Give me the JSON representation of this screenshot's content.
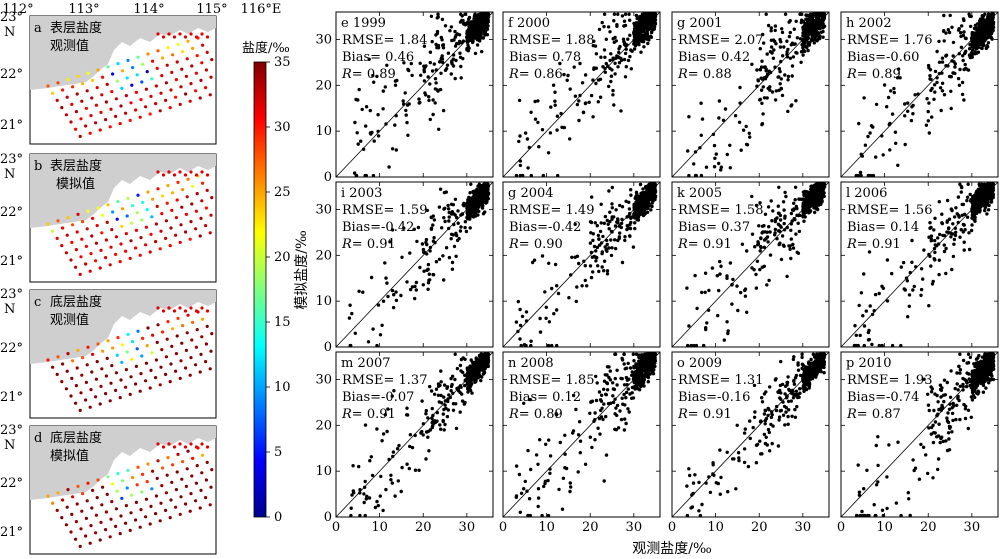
{
  "maps": {
    "top_lon_labels": [
      "112°",
      "113°",
      "114°",
      "115°",
      "116°E"
    ],
    "lat_labels": [
      {
        "deg": "23°",
        "hemi": "N"
      },
      {
        "deg": "22°"
      },
      {
        "deg": "21°"
      }
    ],
    "panels": [
      {
        "letter": "a",
        "line1": "表层盐度",
        "line2": "观测值"
      },
      {
        "letter": "b",
        "line1": "表层盐度",
        "line2": "模拟值"
      },
      {
        "letter": "c",
        "line1": "底层盐度",
        "line2": "观测值"
      },
      {
        "letter": "d",
        "line1": "底层盐度",
        "line2": "模拟值"
      }
    ],
    "colors": {
      "land": "#cfcfcf",
      "sea": "#ffffff"
    }
  },
  "colorbar": {
    "label": "盐度/‰",
    "ticks": [
      "0",
      "5",
      "10",
      "15",
      "20",
      "25",
      "30",
      "35"
    ],
    "range": [
      0,
      35
    ],
    "colormap": "jet"
  },
  "chart_data": {
    "type": "scatter",
    "xlabel": "观测盐度/‰",
    "ylabel": "模拟盐度/‰",
    "xlim": [
      0,
      36
    ],
    "ylim": [
      0,
      36
    ],
    "x_ticks": [
      "0",
      "10",
      "20",
      "30"
    ],
    "y_ticks": [
      "0",
      "10",
      "20",
      "30"
    ],
    "reference_line": "1:1",
    "marker_color": "#000000",
    "panels": [
      {
        "letter": "e",
        "year": "1999",
        "rmse": "1.84",
        "bias": "0.46",
        "r": "0.89"
      },
      {
        "letter": "f",
        "year": "2000",
        "rmse": "1.88",
        "bias": "0.78",
        "r": "0.86"
      },
      {
        "letter": "g",
        "year": "2001",
        "rmse": "2.07",
        "bias": "0.42",
        "r": "0.88"
      },
      {
        "letter": "h",
        "year": "2002",
        "rmse": "1.76",
        "bias": "-0.60",
        "r": "0.89"
      },
      {
        "letter": "i",
        "year": "2003",
        "rmse": "1.59",
        "bias": "-0.42",
        "r": "0.91"
      },
      {
        "letter": "g",
        "year": "2004",
        "rmse": "1.49",
        "bias": "-0.42",
        "r": "0.90"
      },
      {
        "letter": "k",
        "year": "2005",
        "rmse": "1.58",
        "bias": "0.37",
        "r": "0.91"
      },
      {
        "letter": "l",
        "year": "2006",
        "rmse": "1.56",
        "bias": "0.14",
        "r": "0.91"
      },
      {
        "letter": "m",
        "year": "2007",
        "rmse": "1.37",
        "bias": "-0.07",
        "r": "0.91"
      },
      {
        "letter": "n",
        "year": "2008",
        "rmse": "1.85",
        "bias": "0.12",
        "r": "0.89"
      },
      {
        "letter": "o",
        "year": "2009",
        "rmse": "1.31",
        "bias": "-0.16",
        "r": "0.91"
      },
      {
        "letter": "p",
        "year": "2010",
        "rmse": "1.93",
        "bias": "-0.74",
        "r": "0.87"
      }
    ]
  }
}
